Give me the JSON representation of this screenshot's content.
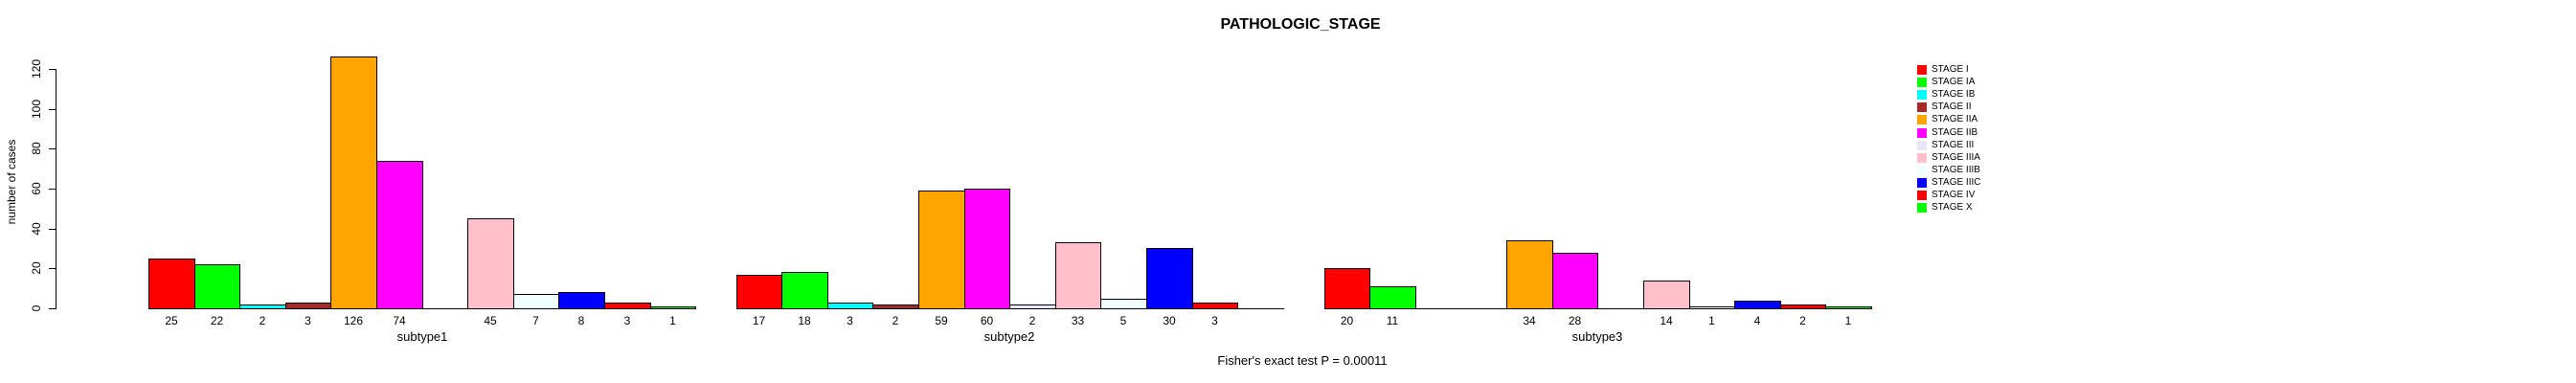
{
  "chart_data": {
    "type": "bar",
    "title": "PATHOLOGIC_STAGE",
    "ylabel": "number of cases",
    "xlabel": "",
    "ylim": [
      0,
      130
    ],
    "yticks": [
      0,
      20,
      40,
      60,
      80,
      100,
      120
    ],
    "grid": false,
    "legend_position": "right",
    "annotation": "Fisher's exact test P = 0.00011",
    "bar_value_labels": "shown under each bar, only for non-zero values",
    "stages": [
      {
        "label": "STAGE I",
        "color": "#FF0000"
      },
      {
        "label": "STAGE IA",
        "color": "#00FF00"
      },
      {
        "label": "STAGE IB",
        "color": "#00FFFF"
      },
      {
        "label": "STAGE II",
        "color": "#A52A2A"
      },
      {
        "label": "STAGE IIA",
        "color": "#FFA500"
      },
      {
        "label": "STAGE IIB",
        "color": "#FF00FF"
      },
      {
        "label": "STAGE III",
        "color": "#E6E6FA"
      },
      {
        "label": "STAGE IIIA",
        "color": "#FFC0CB"
      },
      {
        "label": "STAGE IIIB",
        "color": "#F0FFFF"
      },
      {
        "label": "STAGE IIIC",
        "color": "#0000FF"
      },
      {
        "label": "STAGE IV",
        "color": "#FF0000"
      },
      {
        "label": "STAGE X",
        "color": "#00FF00"
      }
    ],
    "groups": [
      {
        "label": "subtype1",
        "values": [
          25,
          22,
          2,
          3,
          126,
          74,
          0,
          45,
          7,
          8,
          3,
          1
        ]
      },
      {
        "label": "subtype2",
        "values": [
          17,
          18,
          3,
          2,
          59,
          60,
          2,
          33,
          5,
          30,
          3,
          0
        ]
      },
      {
        "label": "subtype3",
        "values": [
          20,
          11,
          0,
          0,
          34,
          28,
          0,
          14,
          1,
          4,
          2,
          1
        ]
      }
    ]
  }
}
